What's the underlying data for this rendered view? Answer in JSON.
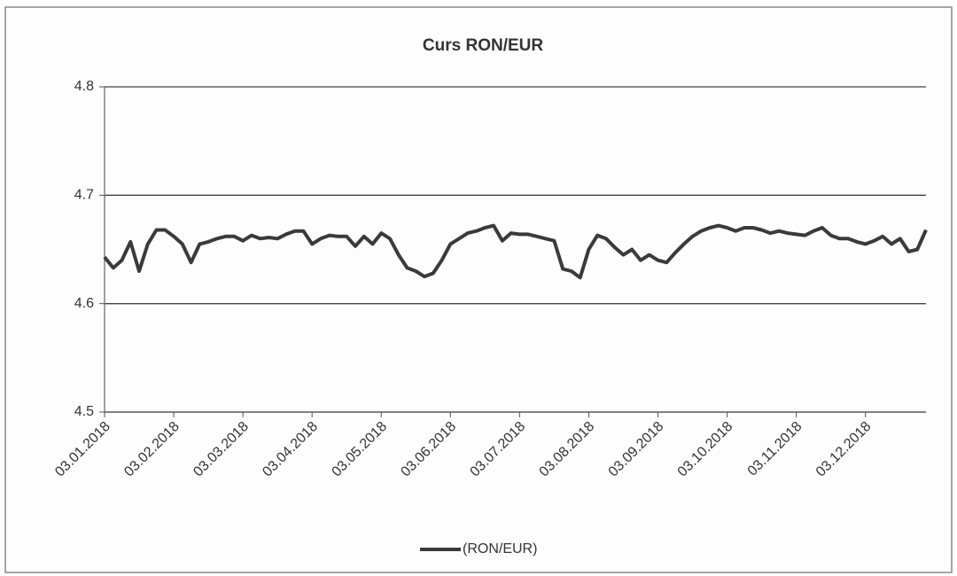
{
  "chart_data": {
    "type": "line",
    "title": "Curs RON/EUR",
    "categories": [
      "03.01.2018",
      null,
      null,
      null,
      null,
      null,
      null,
      null,
      "03.02.2018",
      null,
      null,
      null,
      null,
      null,
      null,
      null,
      "03.03.2018",
      null,
      null,
      null,
      null,
      null,
      null,
      null,
      "03.04.2018",
      null,
      null,
      null,
      null,
      null,
      null,
      null,
      "03.05.2018",
      null,
      null,
      null,
      null,
      null,
      null,
      null,
      "03.06.2018",
      null,
      null,
      null,
      null,
      null,
      null,
      null,
      "03.07.2018",
      null,
      null,
      null,
      null,
      null,
      null,
      null,
      "03.08.2018",
      null,
      null,
      null,
      null,
      null,
      null,
      null,
      "03.09.2018",
      null,
      null,
      null,
      null,
      null,
      null,
      null,
      "03.10.2018",
      null,
      null,
      null,
      null,
      null,
      null,
      null,
      "03.11.2018",
      null,
      null,
      null,
      null,
      null,
      null,
      null,
      "03.12.2018",
      null,
      null,
      null,
      null,
      null,
      null,
      null
    ],
    "series": [
      {
        "name": "(RON/EUR)",
        "color": "#3a3a3a",
        "values": [
          4.643,
          4.633,
          4.64,
          4.657,
          4.63,
          4.655,
          4.668,
          4.668,
          4.662,
          4.655,
          4.638,
          4.655,
          4.657,
          4.66,
          4.662,
          4.662,
          4.658,
          4.663,
          4.66,
          4.661,
          4.66,
          4.664,
          4.667,
          4.667,
          4.655,
          4.66,
          4.663,
          4.662,
          4.662,
          4.653,
          4.662,
          4.655,
          4.665,
          4.66,
          4.645,
          4.633,
          4.63,
          4.625,
          4.628,
          4.64,
          4.655,
          4.66,
          4.665,
          4.667,
          4.67,
          4.672,
          4.658,
          4.665,
          4.664,
          4.664,
          4.662,
          4.66,
          4.658,
          4.632,
          4.63,
          4.624,
          4.65,
          4.663,
          4.66,
          4.652,
          4.645,
          4.65,
          4.64,
          4.645,
          4.64,
          4.638,
          4.647,
          4.655,
          4.662,
          4.667,
          4.67,
          4.672,
          4.67,
          4.667,
          4.67,
          4.67,
          4.668,
          4.665,
          4.667,
          4.665,
          4.664,
          4.663,
          4.667,
          4.67,
          4.663,
          4.66,
          4.66,
          4.657,
          4.655,
          4.658,
          4.662,
          4.655,
          4.66,
          4.648,
          4.65,
          4.668
        ]
      }
    ],
    "ylim": [
      4.5,
      4.8
    ],
    "yticks": [
      4.5,
      4.6,
      4.7,
      4.8
    ],
    "grid": true,
    "legend": "bottom"
  }
}
